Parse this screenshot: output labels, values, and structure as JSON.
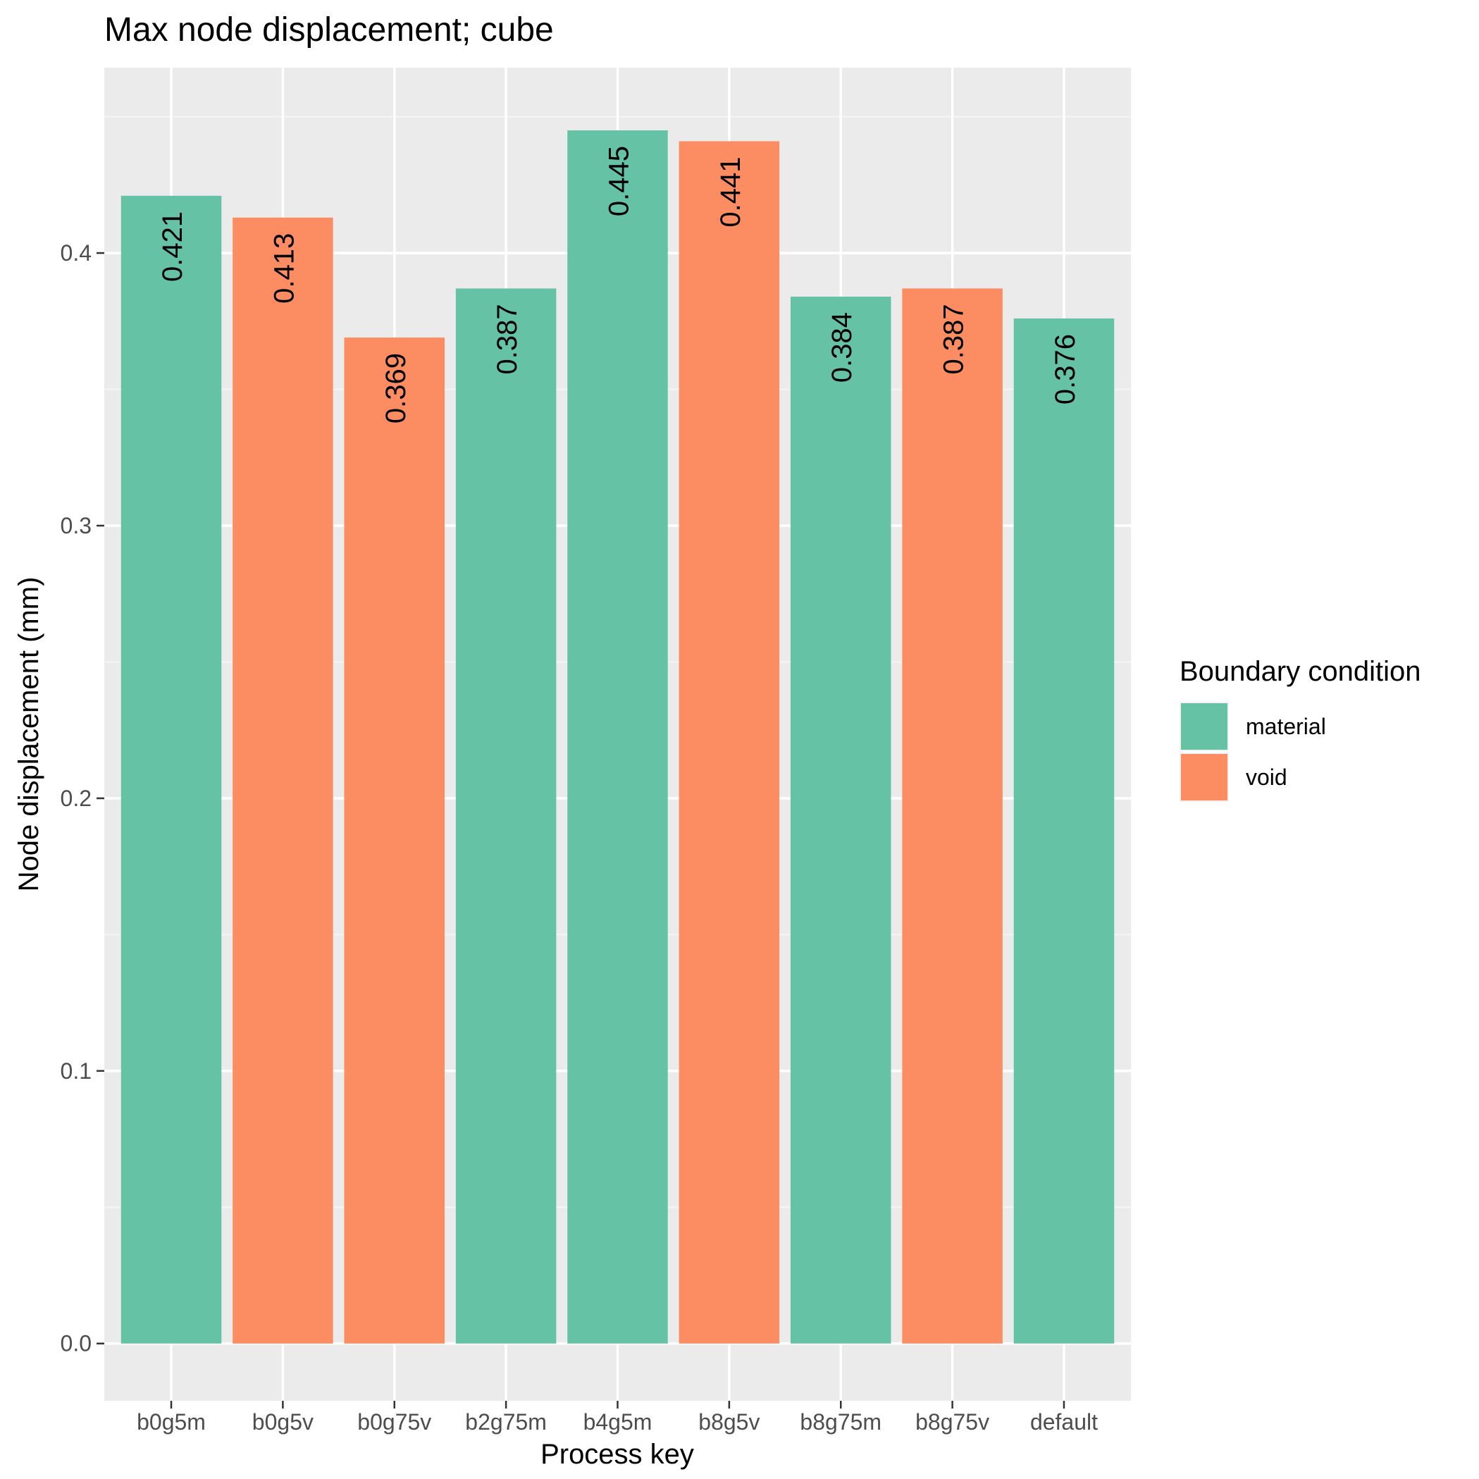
{
  "chart_data": {
    "type": "bar",
    "title": "Max node displacement; cube",
    "xlabel": "Process key",
    "ylabel": "Node displacement (mm)",
    "ylim": [
      -0.021,
      0.468
    ],
    "yticks": [
      0.0,
      0.1,
      0.2,
      0.3,
      0.4
    ],
    "ytick_labels": [
      "0.0",
      "0.1",
      "0.2",
      "0.3",
      "0.4"
    ],
    "grid": true,
    "legend": {
      "title": "Boundary condition",
      "placement": "right",
      "entries": [
        {
          "key": "material",
          "label": "material",
          "color": "#66c2a5"
        },
        {
          "key": "void",
          "label": "void",
          "color": "#fc8d62"
        }
      ]
    },
    "categories": [
      "b0g5m",
      "b0g5v",
      "b0g75v",
      "b2g75m",
      "b4g5m",
      "b8g5v",
      "b8g75m",
      "b8g75v",
      "default"
    ],
    "values": [
      0.421,
      0.413,
      0.369,
      0.387,
      0.445,
      0.441,
      0.384,
      0.387,
      0.376
    ],
    "value_labels": [
      "0.421",
      "0.413",
      "0.369",
      "0.387",
      "0.445",
      "0.441",
      "0.384",
      "0.387",
      "0.376"
    ],
    "groups": [
      "material",
      "void",
      "void",
      "material",
      "material",
      "void",
      "material",
      "void",
      "material"
    ]
  },
  "colors": {
    "panel_background": "#ebebeb",
    "grid_major": "#ffffff",
    "grid_minor": "#f5f5f5",
    "axis_text": "#4d4d4d",
    "text": "#000000"
  }
}
